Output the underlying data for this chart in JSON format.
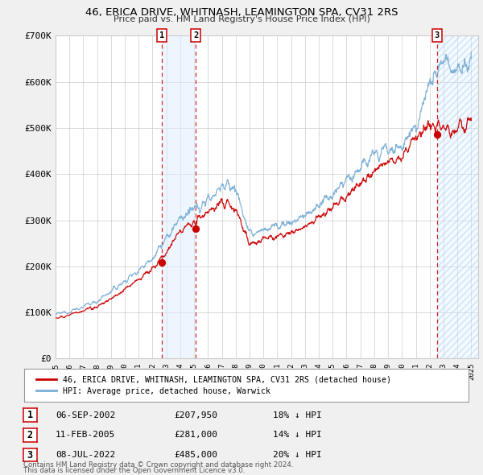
{
  "title": "46, ERICA DRIVE, WHITNASH, LEAMINGTON SPA, CV31 2RS",
  "subtitle": "Price paid vs. HM Land Registry's House Price Index (HPI)",
  "red_label": "46, ERICA DRIVE, WHITNASH, LEAMINGTON SPA, CV31 2RS (detached house)",
  "blue_label": "HPI: Average price, detached house, Warwick",
  "transactions": [
    {
      "num": 1,
      "date": "06-SEP-2002",
      "price": "£207,950",
      "pct": "18%",
      "year": 2002.67
    },
    {
      "num": 2,
      "date": "11-FEB-2005",
      "price": "£281,000",
      "pct": "14%",
      "year": 2005.11
    },
    {
      "num": 3,
      "date": "08-JUL-2022",
      "price": "£485,000",
      "pct": "20%",
      "year": 2022.52
    }
  ],
  "red_color": "#cc0000",
  "blue_color": "#7aaed6",
  "grid_color": "#cccccc",
  "bg_color": "#f0f0f0",
  "plot_bg_color": "#ffffff",
  "shade_color": "#ddeeff",
  "ylim": [
    0,
    700000
  ],
  "xlim_start": 1995.0,
  "xlim_end": 2025.5,
  "ytick_values": [
    0,
    100000,
    200000,
    300000,
    400000,
    500000,
    600000,
    700000
  ],
  "ytick_labels": [
    "£0",
    "£100K",
    "£200K",
    "£300K",
    "£400K",
    "£500K",
    "£600K",
    "£700K"
  ],
  "footer1": "Contains HM Land Registry data © Crown copyright and database right 2024.",
  "footer2": "This data is licensed under the Open Government Licence v3.0.",
  "red_dot_prices": [
    207950,
    281000,
    485000
  ],
  "red_dot_years": [
    2002.67,
    2005.11,
    2022.52
  ],
  "hpi_years": [
    1995.0,
    1996.0,
    1997.0,
    1998.0,
    1999.0,
    2000.0,
    2001.0,
    2002.0,
    2003.0,
    2004.0,
    2005.0,
    2006.0,
    2007.0,
    2008.0,
    2009.0,
    2010.0,
    2011.0,
    2012.0,
    2013.0,
    2014.0,
    2015.0,
    2016.0,
    2017.0,
    2018.0,
    2019.0,
    2020.0,
    2021.0,
    2022.0,
    2023.0,
    2024.0,
    2025.0
  ],
  "hpi_vals": [
    95000,
    103000,
    112000,
    125000,
    145000,
    168000,
    193000,
    220000,
    258000,
    305000,
    320000,
    345000,
    375000,
    370000,
    268000,
    280000,
    288000,
    295000,
    310000,
    330000,
    355000,
    385000,
    415000,
    440000,
    460000,
    455000,
    510000,
    600000,
    635000,
    640000,
    645000
  ],
  "red_years": [
    1995.0,
    1996.0,
    1997.0,
    1998.0,
    1999.0,
    2000.0,
    2001.0,
    2002.0,
    2003.0,
    2004.0,
    2005.0,
    2006.0,
    2007.0,
    2008.0,
    2009.0,
    2010.0,
    2011.0,
    2012.0,
    2013.0,
    2014.0,
    2015.0,
    2016.0,
    2017.0,
    2018.0,
    2019.0,
    2020.0,
    2021.0,
    2022.0,
    2023.0,
    2024.0,
    2025.0
  ],
  "red_vals": [
    88000,
    95000,
    102000,
    113000,
    130000,
    150000,
    172000,
    195000,
    230000,
    275000,
    295000,
    315000,
    340000,
    325000,
    248000,
    258000,
    265000,
    270000,
    285000,
    305000,
    328000,
    355000,
    382000,
    408000,
    428000,
    435000,
    475000,
    510000,
    498000,
    503000,
    505000
  ]
}
